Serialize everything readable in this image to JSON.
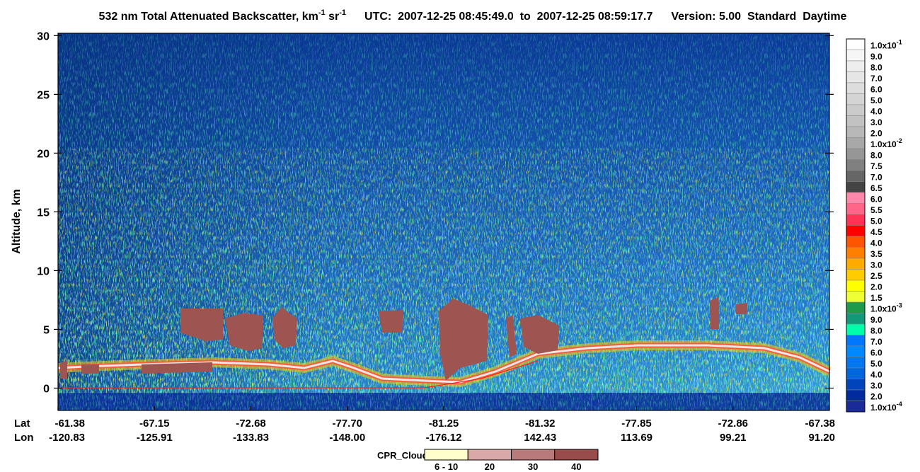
{
  "chart_data": {
    "type": "heatmap",
    "title": {
      "text": "532 nm Total Attenuated Backscatter, km",
      "unit_exp": "-1",
      "unit2": " sr",
      "unit2_exp": "-1",
      "time": "UTC:  2007-12-25 08:45:49.0  to  2007-12-25 08:59:17.7",
      "version": "Version: 5.00  Standard  Daytime"
    },
    "ylabel": "Altitude, km",
    "ylim": [
      -1.9,
      30.2
    ],
    "yticks": [
      0,
      5,
      10,
      15,
      20,
      25,
      30
    ],
    "x_rows": [
      {
        "name": "Lat",
        "labels": [
          "-61.38",
          "-67.15",
          "-72.68",
          "-77.70",
          "-81.25",
          "-81.32",
          "-77.85",
          "-72.86",
          "-67.38"
        ]
      },
      {
        "name": "Lon",
        "labels": [
          "-120.83",
          "-125.91",
          "-133.83",
          "-148.00",
          "-176.12",
          "142.43",
          "113.69",
          "99.21",
          "91.20"
        ]
      }
    ],
    "colorbar": [
      {
        "label": "1.0x10",
        "exp": "-1",
        "color": "#ffffff"
      },
      {
        "label": "9.0",
        "color": "#f6f6f6"
      },
      {
        "label": "8.0",
        "color": "#eeeeee"
      },
      {
        "label": "7.0",
        "color": "#e6e6e6"
      },
      {
        "label": "6.0",
        "color": "#dddddd"
      },
      {
        "label": "5.0",
        "color": "#d4d4d4"
      },
      {
        "label": "4.0",
        "color": "#cbcbcb"
      },
      {
        "label": "3.0",
        "color": "#c2c2c2"
      },
      {
        "label": "2.0",
        "color": "#b8b8b8"
      },
      {
        "label": "1.0x10",
        "exp": "-2",
        "color": "#a8a8a8"
      },
      {
        "label": "8.0",
        "color": "#969696"
      },
      {
        "label": "7.5",
        "color": "#808080"
      },
      {
        "label": "7.0",
        "color": "#666666"
      },
      {
        "label": "6.5",
        "color": "#444444"
      },
      {
        "label": "6.0",
        "color": "#ff88aa"
      },
      {
        "label": "5.5",
        "color": "#ff6688"
      },
      {
        "label": "5.0",
        "color": "#ff3355"
      },
      {
        "label": "4.5",
        "color": "#ff0000"
      },
      {
        "label": "4.0",
        "color": "#ff5500"
      },
      {
        "label": "3.5",
        "color": "#ff7f00"
      },
      {
        "label": "3.0",
        "color": "#ffaa00"
      },
      {
        "label": "2.5",
        "color": "#ffcc00"
      },
      {
        "label": "2.0",
        "color": "#ffff00"
      },
      {
        "label": "1.5",
        "color": "#eeff33"
      },
      {
        "label": "1.0x10",
        "exp": "-3",
        "color": "#1f9a4a"
      },
      {
        "label": "9.0",
        "color": "#11997a"
      },
      {
        "label": "8.0",
        "color": "#00ffaa"
      },
      {
        "label": "7.0",
        "color": "#0077ff"
      },
      {
        "label": "6.0",
        "color": "#0088ff"
      },
      {
        "label": "5.0",
        "color": "#0077ee"
      },
      {
        "label": "4.0",
        "color": "#0066dd"
      },
      {
        "label": "3.0",
        "color": "#0044bb"
      },
      {
        "label": "2.0",
        "color": "#002a9e"
      },
      {
        "label": "1.0x10",
        "exp": "-4",
        "color": "#1a2a99"
      }
    ],
    "legend": {
      "title": "CPR_Cloud_mask",
      "items": [
        {
          "label": "6 - 10",
          "color": "#ffffcc"
        },
        {
          "label": "20",
          "color": "#d9a8a8"
        },
        {
          "label": "30",
          "color": "#b87a7a"
        },
        {
          "label": "40",
          "color": "#994c4c"
        }
      ]
    }
  }
}
